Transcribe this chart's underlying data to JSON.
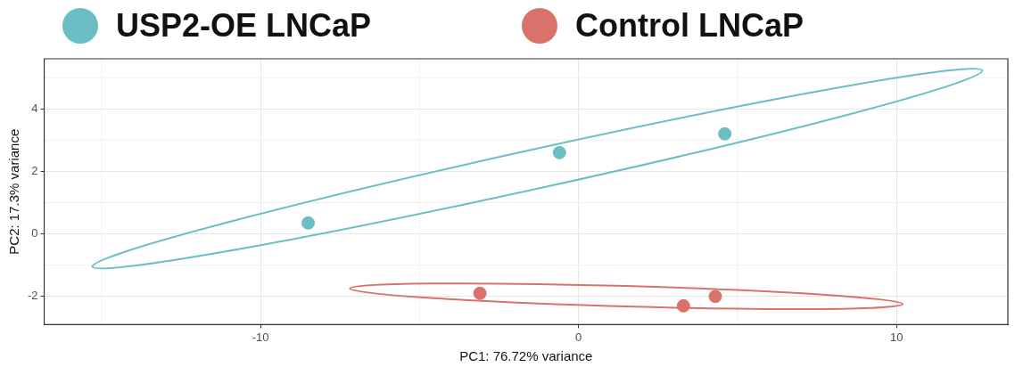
{
  "chart_data": {
    "type": "scatter",
    "xlabel": "PC1: 76.72% variance",
    "ylabel": "PC2: 17.3% variance",
    "xlim": [
      -16.8,
      13.5
    ],
    "ylim": [
      -2.9,
      5.6
    ],
    "xticks": [
      -10,
      0,
      10
    ],
    "yticks": [
      -2,
      0,
      2,
      4
    ],
    "grid": true,
    "legend": "top",
    "marker": "circle",
    "series": [
      {
        "name": "USP2-OE LNCaP",
        "color": "#6bbfc4",
        "x": [
          -8.5,
          -0.6,
          4.6
        ],
        "values": [
          0.35,
          2.6,
          3.2
        ]
      },
      {
        "name": "Control LNCaP",
        "color": "#d9726a",
        "x": [
          -3.1,
          3.3,
          4.3
        ],
        "values": [
          -1.9,
          -2.3,
          -2.0
        ]
      }
    ]
  }
}
